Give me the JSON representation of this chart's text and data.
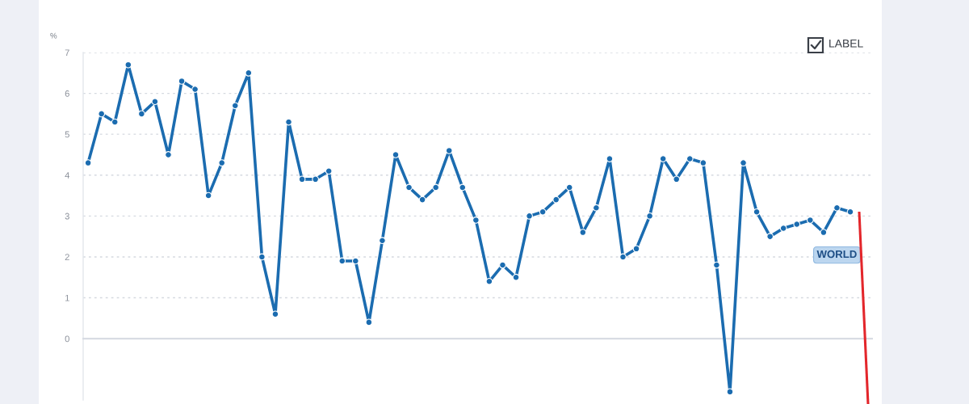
{
  "chart_data": {
    "type": "line",
    "ylabel": "%",
    "annotations": [
      "LABEL"
    ],
    "categories": [
      null,
      null,
      null,
      null,
      null,
      null,
      null,
      null,
      null,
      null,
      null,
      null,
      null,
      null,
      null,
      null,
      null,
      null,
      null,
      null,
      null,
      null,
      null,
      null,
      null,
      null,
      null,
      null,
      null,
      null,
      null,
      null,
      null,
      null,
      null,
      null,
      null,
      null,
      null,
      null,
      null,
      null,
      null,
      null,
      null,
      null,
      null,
      null,
      null,
      null,
      null,
      null,
      null,
      null,
      null,
      null,
      null,
      null
    ],
    "series": [
      {
        "name": "WORLD",
        "color": "#1b6cb0",
        "values": [
          4.3,
          5.5,
          5.3,
          6.7,
          5.5,
          5.8,
          4.5,
          6.3,
          6.1,
          3.5,
          4.3,
          5.7,
          6.5,
          2.0,
          0.6,
          5.3,
          3.9,
          3.9,
          4.1,
          1.9,
          1.9,
          0.4,
          2.4,
          4.5,
          3.7,
          3.4,
          3.7,
          4.6,
          3.7,
          2.9,
          1.4,
          1.8,
          1.5,
          3.0,
          3.1,
          3.4,
          3.7,
          2.6,
          3.2,
          4.4,
          2.0,
          2.2,
          3.0,
          4.4,
          3.9,
          4.4,
          4.3,
          1.8,
          -1.3,
          4.3,
          3.1,
          2.5,
          2.7,
          2.8,
          2.9,
          2.6,
          3.2,
          3.1
        ]
      }
    ],
    "ylim": [
      -1.5,
      7
    ],
    "yticks": [
      0,
      1,
      2,
      3,
      4,
      5,
      6,
      7
    ],
    "grid": "y",
    "legend": false,
    "tick_labels": "y",
    "marker": "circle",
    "line_style": "solid"
  }
}
